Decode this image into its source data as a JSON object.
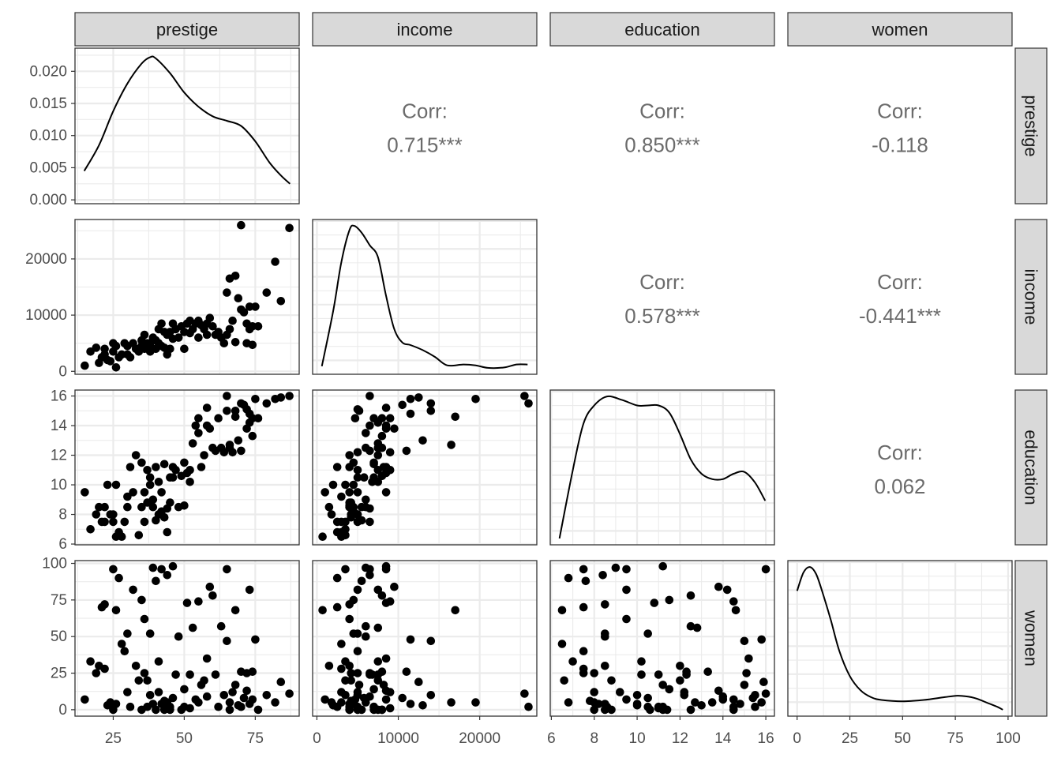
{
  "chart_data": {
    "type": "scatterplot-matrix",
    "variables": [
      "prestige",
      "income",
      "education",
      "women"
    ],
    "ranges": {
      "prestige": [
        14.8,
        87.2
      ],
      "income": [
        611,
        25879
      ],
      "education": [
        6.38,
        15.97
      ],
      "women": [
        0,
        97.51
      ]
    },
    "axes": {
      "prestige": {
        "ticks": [
          25,
          50,
          75
        ],
        "labels": [
          "25",
          "50",
          "75"
        ]
      },
      "income": {
        "ticks": [
          0,
          10000,
          20000
        ],
        "labels": [
          "0",
          "10000",
          "20000"
        ]
      },
      "education": {
        "ticks": [
          6,
          8,
          10,
          12,
          14,
          16
        ],
        "labels": [
          "6",
          "8",
          "10",
          "12",
          "14",
          "16"
        ]
      },
      "women": {
        "ticks": [
          0,
          25,
          50,
          75,
          100
        ],
        "labels": [
          "0",
          "25",
          "50",
          "75",
          "100"
        ]
      }
    },
    "density_axis": {
      "range": [
        -0.0006,
        0.0236
      ],
      "ticks": [
        0,
        0.005,
        0.01,
        0.015,
        0.02
      ],
      "labels": [
        "0.000",
        "0.005",
        "0.010",
        "0.015",
        "0.020"
      ]
    },
    "correlations": [
      {
        "row": "prestige",
        "col": "income",
        "label": "Corr:",
        "value": "0.715***"
      },
      {
        "row": "prestige",
        "col": "education",
        "label": "Corr:",
        "value": "0.850***"
      },
      {
        "row": "prestige",
        "col": "women",
        "label": "Corr:",
        "value": "-0.118"
      },
      {
        "row": "income",
        "col": "education",
        "label": "Corr:",
        "value": "0.578***"
      },
      {
        "row": "income",
        "col": "women",
        "label": "Corr:",
        "value": "-0.441***"
      },
      {
        "row": "education",
        "col": "women",
        "label": "Corr:",
        "value": "0.062"
      }
    ],
    "densities": {
      "prestige": [
        [
          14.8,
          0.0045
        ],
        [
          20,
          0.0085
        ],
        [
          25,
          0.0138
        ],
        [
          30,
          0.0181
        ],
        [
          35,
          0.0212
        ],
        [
          38,
          0.0222
        ],
        [
          40,
          0.022
        ],
        [
          45,
          0.0197
        ],
        [
          50,
          0.0167
        ],
        [
          55,
          0.0145
        ],
        [
          60,
          0.013
        ],
        [
          65,
          0.0123
        ],
        [
          70,
          0.0115
        ],
        [
          75,
          0.0091
        ],
        [
          80,
          0.0058
        ],
        [
          84,
          0.0038
        ],
        [
          87.2,
          0.0025
        ]
      ],
      "income": [
        [
          611,
          0.3
        ],
        [
          2000,
          6.8
        ],
        [
          3000,
          12.6
        ],
        [
          4000,
          16.4
        ],
        [
          4600,
          16.9
        ],
        [
          5500,
          16.1
        ],
        [
          6500,
          14.6
        ],
        [
          7500,
          13.2
        ],
        [
          8500,
          8.6
        ],
        [
          9500,
          4.7
        ],
        [
          10500,
          3.1
        ],
        [
          11500,
          2.8
        ],
        [
          13000,
          2.2
        ],
        [
          14500,
          1.4
        ],
        [
          16000,
          0.4
        ],
        [
          18000,
          0.5
        ],
        [
          19500,
          0.4
        ],
        [
          21000,
          0.1
        ],
        [
          23000,
          0.15
        ],
        [
          24500,
          0.5
        ],
        [
          25879,
          0.5
        ]
      ],
      "education": [
        [
          6.38,
          0.5
        ],
        [
          7,
          2.4
        ],
        [
          7.5,
          3.7
        ],
        [
          8,
          4.2
        ],
        [
          8.6,
          4.45
        ],
        [
          9.3,
          4.35
        ],
        [
          10,
          4.2
        ],
        [
          10.5,
          4.2
        ],
        [
          11,
          4.2
        ],
        [
          11.5,
          4.0
        ],
        [
          12,
          3.4
        ],
        [
          12.5,
          2.7
        ],
        [
          13,
          2.3
        ],
        [
          13.5,
          2.15
        ],
        [
          14,
          2.15
        ],
        [
          14.5,
          2.3
        ],
        [
          15,
          2.35
        ],
        [
          15.5,
          2.05
        ],
        [
          15.97,
          1.55
        ]
      ],
      "women": [
        [
          0,
          5.25
        ],
        [
          3,
          5.9
        ],
        [
          6,
          6.1
        ],
        [
          9,
          5.85
        ],
        [
          12,
          5.2
        ],
        [
          16,
          4.2
        ],
        [
          20,
          3.1
        ],
        [
          25,
          2.2
        ],
        [
          30,
          1.7
        ],
        [
          35,
          1.45
        ],
        [
          40,
          1.35
        ],
        [
          50,
          1.3
        ],
        [
          60,
          1.35
        ],
        [
          70,
          1.45
        ],
        [
          76,
          1.5
        ],
        [
          80,
          1.48
        ],
        [
          85,
          1.4
        ],
        [
          90,
          1.25
        ],
        [
          95,
          1.1
        ],
        [
          97.51,
          1.0
        ]
      ]
    },
    "observations": [
      [
        15,
        1000,
        9.5,
        7
      ],
      [
        17,
        3500,
        7,
        33
      ],
      [
        19,
        4200,
        8,
        25
      ],
      [
        20,
        1500,
        8.5,
        30
      ],
      [
        21,
        2500,
        7.5,
        70
      ],
      [
        22,
        4000,
        8.5,
        72
      ],
      [
        22,
        3000,
        7.5,
        28
      ],
      [
        23,
        2000,
        10,
        3
      ],
      [
        24,
        1800,
        8,
        5
      ],
      [
        25,
        5000,
        8,
        0
      ],
      [
        25,
        3500,
        7.5,
        96
      ],
      [
        26,
        700,
        6.5,
        68
      ],
      [
        26,
        4500,
        10,
        4
      ],
      [
        27,
        2500,
        6.8,
        90
      ],
      [
        28,
        3000,
        6.5,
        45
      ],
      [
        29,
        5000,
        7.5,
        40
      ],
      [
        30,
        4500,
        8.5,
        52
      ],
      [
        30,
        3000,
        9.2,
        12
      ],
      [
        31,
        2500,
        11.2,
        2
      ],
      [
        32,
        5000,
        9.5,
        82
      ],
      [
        33,
        4000,
        12,
        30
      ],
      [
        34,
        3500,
        6.6,
        20
      ],
      [
        35,
        4500,
        11.5,
        75
      ],
      [
        35,
        5500,
        8.5,
        0
      ],
      [
        36,
        4000,
        9.5,
        62
      ],
      [
        36,
        6500,
        7.5,
        25
      ],
      [
        37,
        4200,
        8.8,
        20
      ],
      [
        37,
        5000,
        11,
        2
      ],
      [
        38,
        5000,
        10.5,
        52
      ],
      [
        38,
        3500,
        10,
        10
      ],
      [
        39,
        6000,
        9,
        97
      ],
      [
        39,
        4000,
        8.5,
        4
      ],
      [
        40,
        5500,
        7.6,
        88
      ],
      [
        40,
        4000,
        11.2,
        0
      ],
      [
        41,
        7500,
        10.2,
        33
      ],
      [
        41,
        5000,
        8,
        12
      ],
      [
        42,
        8500,
        9.5,
        96
      ],
      [
        42,
        4500,
        8.2,
        4
      ],
      [
        43,
        7000,
        11.4,
        0
      ],
      [
        43,
        4200,
        7.8,
        6
      ],
      [
        44,
        6500,
        8.4,
        92
      ],
      [
        44,
        3000,
        6.8,
        5
      ],
      [
        45,
        7000,
        10.5,
        2
      ],
      [
        45,
        4000,
        8.8,
        0
      ],
      [
        46,
        8500,
        11.2,
        98
      ],
      [
        46,
        5800,
        10.5,
        8
      ],
      [
        47,
        7500,
        11,
        24
      ],
      [
        48,
        6000,
        8.5,
        50
      ],
      [
        49,
        8000,
        10.6,
        0
      ],
      [
        50,
        7000,
        11.5,
        14
      ],
      [
        50,
        4000,
        8.6,
        2
      ],
      [
        51,
        8500,
        10.8,
        73
      ],
      [
        52,
        9000,
        11,
        1
      ],
      [
        52,
        6800,
        10.2,
        24
      ],
      [
        53,
        7500,
        12.8,
        56
      ],
      [
        54,
        8500,
        14,
        7
      ],
      [
        55,
        6000,
        13.5,
        5
      ],
      [
        55,
        9000,
        14.5,
        74
      ],
      [
        56,
        8200,
        11.2,
        17
      ],
      [
        57,
        7500,
        12,
        20
      ],
      [
        58,
        8500,
        15.2,
        35
      ],
      [
        58,
        6500,
        14,
        9
      ],
      [
        59,
        9500,
        13.8,
        84
      ],
      [
        60,
        8000,
        12.5,
        78
      ],
      [
        61,
        6500,
        12.3,
        24
      ],
      [
        62,
        7000,
        14.5,
        2
      ],
      [
        63,
        6000,
        12.5,
        57
      ],
      [
        64,
        5000,
        12.2,
        10
      ],
      [
        65,
        14000,
        15,
        47
      ],
      [
        65,
        6500,
        16,
        96
      ],
      [
        66,
        7500,
        12.5,
        0
      ],
      [
        66,
        16500,
        12.7,
        5
      ],
      [
        67,
        9000,
        12.2,
        12
      ],
      [
        68,
        17000,
        14.6,
        68
      ],
      [
        68,
        5200,
        15,
        17
      ],
      [
        69,
        13000,
        13,
        3
      ],
      [
        70,
        26000,
        15.5,
        2
      ],
      [
        70,
        11000,
        12.3,
        26
      ],
      [
        71,
        10500,
        15.4,
        8
      ],
      [
        72,
        8500,
        13.8,
        13
      ],
      [
        72,
        5000,
        15.1,
        25
      ],
      [
        73,
        7500,
        14.2,
        82
      ],
      [
        73,
        11500,
        14.8,
        4
      ],
      [
        74,
        4700,
        14.5,
        7
      ],
      [
        74,
        8000,
        13.3,
        26
      ],
      [
        75,
        11500,
        15.8,
        48
      ],
      [
        76,
        8000,
        14.5,
        0
      ],
      [
        79,
        14000,
        15.5,
        10
      ],
      [
        82,
        19500,
        15.8,
        5
      ],
      [
        84,
        12500,
        15.9,
        19
      ],
      [
        87,
        25500,
        16,
        11
      ]
    ]
  }
}
